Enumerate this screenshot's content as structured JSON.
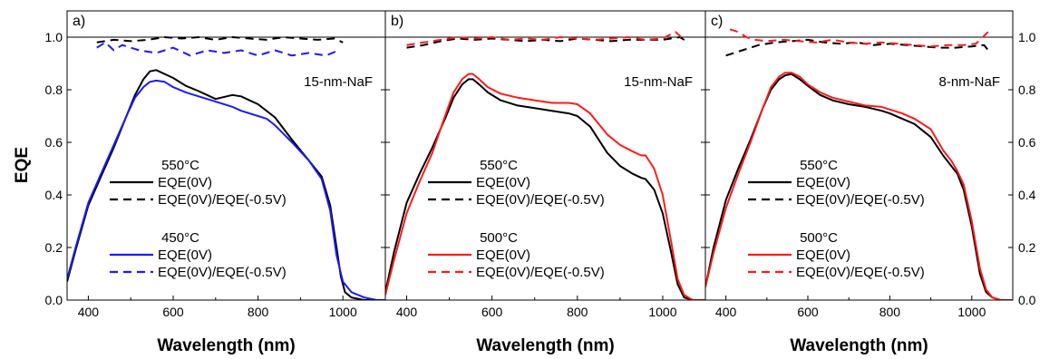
{
  "figure": {
    "ylabel": "EQE",
    "xlabel": "Wavelength (nm)",
    "y_ticks": [
      "0.0",
      "0.2",
      "0.4",
      "0.6",
      "0.8",
      "1.0"
    ],
    "x_ticks": [
      "400",
      "600",
      "800",
      "1000"
    ]
  },
  "colors": {
    "black": "#000000",
    "blue": "#1a1aff",
    "red": "#ff1a1a"
  },
  "chart_data": [
    {
      "type": "line",
      "panel_label": "a)",
      "annotation": "15-nm-NaF",
      "xlabel": "Wavelength (nm)",
      "ylabel": "EQE",
      "xlim": [
        350,
        1100
      ],
      "ylim": [
        0,
        1.1
      ],
      "reference_line": 1.0,
      "legend_groups": [
        {
          "title": "550°C",
          "entries": [
            {
              "label": "EQE(0V)",
              "color": "#000000",
              "style": "solid"
            },
            {
              "label": "EQE(0V)/EQE(-0.5V)",
              "color": "#000000",
              "style": "dashed"
            }
          ]
        },
        {
          "title": "450°C",
          "entries": [
            {
              "label": "EQE(0V)",
              "color": "#1a1aff",
              "style": "solid"
            },
            {
              "label": "EQE(0V)/EQE(-0.5V)",
              "color": "#1a1aff",
              "style": "dashed"
            }
          ]
        }
      ],
      "series": [
        {
          "name": "550°C EQE(0V)",
          "color": "#000000",
          "style": "solid",
          "x": [
            350,
            370,
            400,
            430,
            460,
            490,
            510,
            530,
            545,
            560,
            580,
            600,
            630,
            660,
            700,
            740,
            760,
            800,
            840,
            880,
            920,
            950,
            970,
            985,
            995,
            1005,
            1020,
            1050,
            1080
          ],
          "y": [
            0.07,
            0.19,
            0.36,
            0.47,
            0.58,
            0.7,
            0.78,
            0.84,
            0.87,
            0.875,
            0.86,
            0.845,
            0.815,
            0.795,
            0.765,
            0.78,
            0.775,
            0.745,
            0.695,
            0.61,
            0.53,
            0.47,
            0.36,
            0.2,
            0.09,
            0.03,
            0.01,
            0.0,
            0.0
          ]
        },
        {
          "name": "550°C EQE(0V)/EQE(-0.5V)",
          "color": "#000000",
          "style": "dashed",
          "x": [
            420,
            460,
            500,
            540,
            580,
            620,
            660,
            700,
            740,
            780,
            820,
            860,
            900,
            940,
            980,
            1000
          ],
          "y": [
            0.98,
            0.99,
            0.985,
            0.99,
            1.0,
            0.995,
            1.0,
            0.99,
            1.0,
            0.995,
            0.99,
            1.0,
            0.995,
            0.99,
            0.995,
            0.98
          ]
        },
        {
          "name": "450°C EQE(0V)",
          "color": "#1a1aff",
          "style": "solid",
          "x": [
            350,
            370,
            400,
            430,
            460,
            490,
            510,
            530,
            545,
            560,
            580,
            600,
            630,
            660,
            700,
            740,
            760,
            800,
            820,
            840,
            880,
            920,
            950,
            970,
            985,
            1000,
            1020,
            1050,
            1080,
            1100
          ],
          "y": [
            0.08,
            0.2,
            0.37,
            0.48,
            0.59,
            0.7,
            0.77,
            0.81,
            0.83,
            0.835,
            0.83,
            0.81,
            0.79,
            0.775,
            0.755,
            0.735,
            0.72,
            0.7,
            0.69,
            0.665,
            0.6,
            0.53,
            0.46,
            0.34,
            0.17,
            0.07,
            0.03,
            0.01,
            0.0,
            0.0
          ]
        },
        {
          "name": "450°C EQE(0V)/EQE(-0.5V)",
          "color": "#1a1aff",
          "style": "dashed",
          "x": [
            420,
            440,
            460,
            480,
            520,
            560,
            600,
            640,
            680,
            720,
            760,
            800,
            840,
            880,
            920,
            960,
            990
          ],
          "y": [
            0.96,
            0.98,
            0.95,
            0.97,
            0.95,
            0.94,
            0.96,
            0.93,
            0.95,
            0.94,
            0.95,
            0.93,
            0.95,
            0.93,
            0.94,
            0.93,
            0.95
          ]
        }
      ]
    },
    {
      "type": "line",
      "panel_label": "b)",
      "annotation": "15-nm-NaF",
      "xlabel": "Wavelength (nm)",
      "ylabel": "EQE",
      "xlim": [
        350,
        1100
      ],
      "ylim": [
        0,
        1.1
      ],
      "reference_line": 1.0,
      "legend_groups": [
        {
          "title": "550°C",
          "entries": [
            {
              "label": "EQE(0V)",
              "color": "#000000",
              "style": "solid"
            },
            {
              "label": "EQE(0V)/EQE(-0.5V)",
              "color": "#000000",
              "style": "dashed"
            }
          ]
        },
        {
          "title": "500°C",
          "entries": [
            {
              "label": "EQE(0V)",
              "color": "#ff1a1a",
              "style": "solid"
            },
            {
              "label": "EQE(0V)/EQE(-0.5V)",
              "color": "#ff1a1a",
              "style": "dashed"
            }
          ]
        }
      ],
      "series": [
        {
          "name": "550°C EQE(0V)",
          "color": "#000000",
          "style": "solid",
          "x": [
            350,
            370,
            400,
            430,
            460,
            490,
            510,
            530,
            545,
            555,
            570,
            590,
            620,
            660,
            700,
            740,
            780,
            800,
            830,
            870,
            900,
            930,
            950,
            960,
            980,
            1000,
            1020,
            1035,
            1050,
            1070,
            1100
          ],
          "y": [
            0.03,
            0.18,
            0.37,
            0.48,
            0.58,
            0.69,
            0.77,
            0.82,
            0.84,
            0.84,
            0.82,
            0.79,
            0.76,
            0.74,
            0.73,
            0.72,
            0.71,
            0.7,
            0.66,
            0.56,
            0.51,
            0.48,
            0.465,
            0.46,
            0.42,
            0.33,
            0.18,
            0.06,
            0.01,
            0.0,
            0.0
          ]
        },
        {
          "name": "550°C EQE(0V)/EQE(-0.5V)",
          "color": "#000000",
          "style": "dashed",
          "x": [
            400,
            440,
            480,
            520,
            560,
            600,
            640,
            680,
            720,
            760,
            800,
            840,
            880,
            920,
            960,
            1000,
            1040,
            1060
          ],
          "y": [
            0.96,
            0.97,
            0.985,
            0.995,
            0.99,
            0.995,
            0.99,
            0.985,
            0.99,
            0.985,
            0.995,
            0.99,
            0.985,
            0.99,
            0.99,
            0.99,
            1.0,
            0.98
          ]
        },
        {
          "name": "500°C EQE(0V)",
          "color": "#ff1a1a",
          "style": "solid",
          "x": [
            350,
            370,
            400,
            430,
            460,
            490,
            510,
            530,
            545,
            555,
            570,
            590,
            620,
            660,
            700,
            740,
            780,
            800,
            830,
            870,
            900,
            930,
            950,
            960,
            980,
            1000,
            1020,
            1035,
            1050,
            1070,
            1100
          ],
          "y": [
            0.02,
            0.15,
            0.33,
            0.45,
            0.56,
            0.7,
            0.79,
            0.84,
            0.86,
            0.86,
            0.84,
            0.81,
            0.785,
            0.77,
            0.76,
            0.75,
            0.75,
            0.745,
            0.71,
            0.63,
            0.59,
            0.565,
            0.55,
            0.55,
            0.5,
            0.4,
            0.22,
            0.08,
            0.02,
            0.0,
            0.0
          ]
        },
        {
          "name": "500°C EQE(0V)/EQE(-0.5V)",
          "color": "#ff1a1a",
          "style": "dashed",
          "x": [
            400,
            440,
            480,
            520,
            560,
            600,
            640,
            680,
            720,
            760,
            800,
            840,
            880,
            920,
            960,
            1000,
            1030,
            1050
          ],
          "y": [
            0.97,
            0.98,
            0.99,
            1.0,
            0.995,
            1.0,
            0.99,
            0.995,
            0.99,
            1.0,
            0.995,
            0.99,
            0.995,
            1.0,
            0.99,
            0.995,
            1.02,
            0.99
          ]
        }
      ]
    },
    {
      "type": "line",
      "panel_label": "c)",
      "annotation": "8-nm-NaF",
      "xlabel": "Wavelength (nm)",
      "ylabel": "EQE",
      "xlim": [
        350,
        1100
      ],
      "ylim": [
        0,
        1.1
      ],
      "reference_line": 1.0,
      "legend_groups": [
        {
          "title": "550°C",
          "entries": [
            {
              "label": "EQE(0V)",
              "color": "#000000",
              "style": "solid"
            },
            {
              "label": "EQE(0V)/EQE(-0.5V)",
              "color": "#000000",
              "style": "dashed"
            }
          ]
        },
        {
          "title": "500°C",
          "entries": [
            {
              "label": "EQE(0V)",
              "color": "#ff1a1a",
              "style": "solid"
            },
            {
              "label": "EQE(0V)/EQE(-0.5V)",
              "color": "#ff1a1a",
              "style": "dashed"
            }
          ]
        }
      ],
      "series": [
        {
          "name": "550°C EQE(0V)",
          "color": "#000000",
          "style": "solid",
          "x": [
            350,
            370,
            400,
            430,
            460,
            490,
            510,
            530,
            545,
            560,
            580,
            600,
            630,
            660,
            700,
            740,
            780,
            800,
            830,
            860,
            900,
            930,
            950,
            965,
            980,
            1000,
            1020,
            1035,
            1050,
            1070,
            1100
          ],
          "y": [
            0.05,
            0.2,
            0.38,
            0.5,
            0.61,
            0.73,
            0.8,
            0.84,
            0.855,
            0.86,
            0.84,
            0.815,
            0.78,
            0.76,
            0.745,
            0.735,
            0.72,
            0.71,
            0.69,
            0.67,
            0.62,
            0.55,
            0.51,
            0.48,
            0.42,
            0.28,
            0.1,
            0.03,
            0.01,
            0.0,
            0.0
          ]
        },
        {
          "name": "550°C EQE(0V)/EQE(-0.5V)",
          "color": "#000000",
          "style": "dashed",
          "x": [
            400,
            440,
            480,
            520,
            560,
            600,
            640,
            680,
            720,
            760,
            800,
            840,
            880,
            920,
            960,
            1000,
            1030,
            1040
          ],
          "y": [
            0.93,
            0.95,
            0.97,
            0.98,
            0.985,
            0.99,
            0.98,
            0.975,
            0.98,
            0.97,
            0.975,
            0.97,
            0.965,
            0.96,
            0.96,
            0.965,
            0.97,
            0.95
          ]
        },
        {
          "name": "500°C EQE(0V)",
          "color": "#ff1a1a",
          "style": "solid",
          "x": [
            350,
            370,
            400,
            430,
            460,
            490,
            510,
            530,
            545,
            560,
            580,
            600,
            630,
            660,
            700,
            740,
            780,
            800,
            830,
            860,
            900,
            930,
            950,
            965,
            980,
            1000,
            1020,
            1035,
            1050,
            1070,
            1100
          ],
          "y": [
            0.05,
            0.18,
            0.35,
            0.48,
            0.6,
            0.73,
            0.81,
            0.85,
            0.865,
            0.865,
            0.85,
            0.82,
            0.79,
            0.77,
            0.755,
            0.74,
            0.735,
            0.725,
            0.71,
            0.69,
            0.65,
            0.57,
            0.53,
            0.49,
            0.44,
            0.3,
            0.12,
            0.04,
            0.01,
            0.0,
            0.0
          ]
        },
        {
          "name": "500°C EQE(0V)/EQE(-0.5V)",
          "color": "#ff1a1a",
          "style": "dashed",
          "x": [
            410,
            430,
            450,
            470,
            500,
            540,
            580,
            620,
            660,
            700,
            740,
            780,
            820,
            860,
            900,
            940,
            980,
            1010,
            1040
          ],
          "y": [
            1.03,
            1.02,
            1.0,
            0.99,
            0.985,
            0.99,
            0.985,
            0.98,
            0.99,
            0.98,
            0.975,
            0.98,
            0.975,
            0.97,
            0.965,
            0.97,
            0.97,
            0.975,
            1.02
          ]
        }
      ]
    }
  ]
}
